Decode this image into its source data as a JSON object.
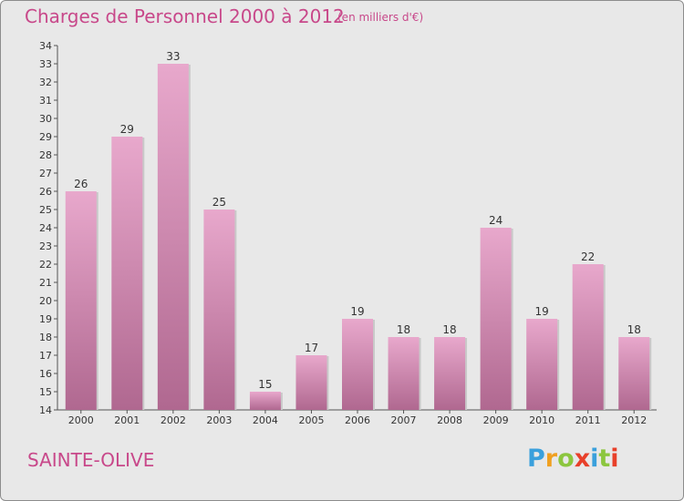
{
  "header": {
    "title": "Charges de Personnel 2000 à 2012",
    "subtitle": "(en milliers d'€)"
  },
  "footer": {
    "location": "SAINTE-OLIVE",
    "logo_text": "Proxiti"
  },
  "colors": {
    "title": "#c8488a",
    "bar_top": "#e8a8cc",
    "bar_bottom": "#b06890",
    "background": "#e8e8e8"
  },
  "chart_data": {
    "type": "bar",
    "title": "Charges de Personnel 2000 à 2012",
    "subtitle": "(en milliers d'€)",
    "categories": [
      "2000",
      "2001",
      "2002",
      "2003",
      "2004",
      "2005",
      "2006",
      "2007",
      "2008",
      "2009",
      "2010",
      "2011",
      "2012"
    ],
    "values": [
      26,
      29,
      33,
      25,
      15,
      17,
      19,
      18,
      18,
      24,
      19,
      22,
      18
    ],
    "ylim": [
      14,
      34
    ],
    "yticks": [
      14,
      15,
      16,
      17,
      18,
      19,
      20,
      21,
      22,
      23,
      24,
      25,
      26,
      27,
      28,
      29,
      30,
      31,
      32,
      33,
      34
    ],
    "grid": false,
    "legend": "none"
  }
}
